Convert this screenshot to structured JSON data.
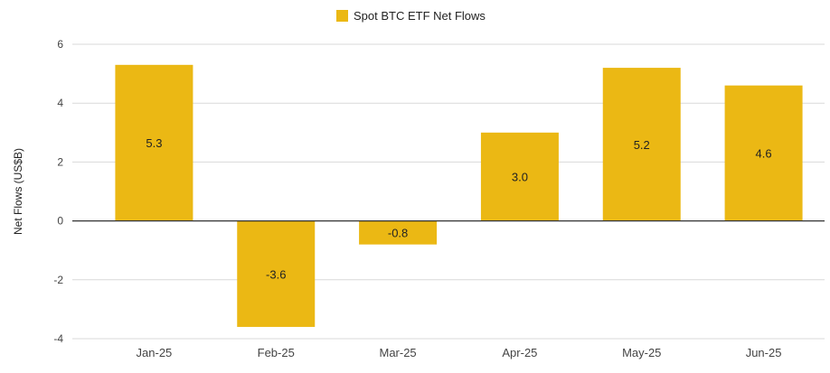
{
  "chart_data": {
    "type": "bar",
    "legend": {
      "label": "Spot BTC ETF Net Flows",
      "placement": "top-center"
    },
    "ylabel": "Net Flows (US$B)",
    "ylim": [
      -4,
      6
    ],
    "yticks": [
      6,
      4,
      2,
      0,
      -2,
      -4
    ],
    "grid": true,
    "categories": [
      "Jan-25",
      "Feb-25",
      "Mar-25",
      "Apr-25",
      "May-25",
      "Jun-25"
    ],
    "values": [
      5.3,
      -3.6,
      -0.8,
      3.0,
      5.2,
      4.6
    ],
    "data_labels": [
      "5.3",
      "-3.6",
      "-0.8",
      "3.0",
      "5.2",
      "4.6"
    ],
    "colors": {
      "bar": "#EBB814",
      "grid": "#d9d9d9",
      "zero_line": "#333333",
      "text": "#222222",
      "axis_text": "#444444"
    }
  }
}
